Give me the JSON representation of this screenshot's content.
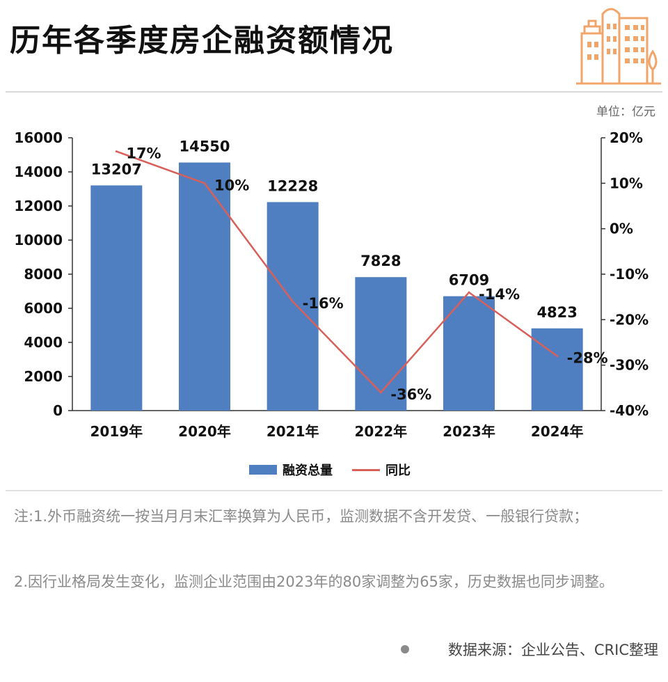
{
  "header": {
    "title": "历年各季度房企融资额情况",
    "unit": "单位：亿元"
  },
  "chart_data": {
    "type": "bar",
    "categories": [
      "2019年",
      "2020年",
      "2021年",
      "2022年",
      "2023年",
      "2024年"
    ],
    "series": [
      {
        "name": "融资总量",
        "kind": "bar",
        "axis": "left",
        "values": [
          13207,
          14550,
          12228,
          7828,
          6709,
          4823
        ],
        "labels": [
          "13207",
          "14550",
          "12228",
          "7828",
          "6709",
          "4823"
        ]
      },
      {
        "name": "同比",
        "kind": "line",
        "axis": "right",
        "values": [
          17,
          10,
          -16,
          -36,
          -14,
          -28
        ],
        "labels": [
          "17%",
          "10%",
          "-16%",
          "-36%",
          "-14%",
          "-28%"
        ]
      }
    ],
    "y_left": {
      "range": [
        0,
        16000
      ],
      "ticks": [
        0,
        2000,
        4000,
        6000,
        8000,
        10000,
        12000,
        14000,
        16000
      ]
    },
    "y_right": {
      "range": [
        -40,
        20
      ],
      "ticks": [
        "20%",
        "10%",
        "0%",
        "-10%",
        "-20%",
        "-30%",
        "-40%"
      ]
    },
    "title": "历年各季度房企融资额情况",
    "legend_position": "bottom-center",
    "grid": false,
    "colors": {
      "bar": "#4f7fc0",
      "line": "#d9605a"
    }
  },
  "legend": {
    "bar_label": "融资总量",
    "line_label": "同比"
  },
  "notes": {
    "note1": "注:1.外币融资统一按当月月末汇率换算为人民币，监测数据不含开发贷、一般银行贷款；",
    "note2": "2.因行业格局发生变化，监测企业范围由2023年的80家调整为65家，历史数据也同步调整。"
  },
  "source": "数据来源：企业公告、CRIC整理",
  "logo": {
    "icon": "building-icon",
    "color": "#f0a56a"
  }
}
